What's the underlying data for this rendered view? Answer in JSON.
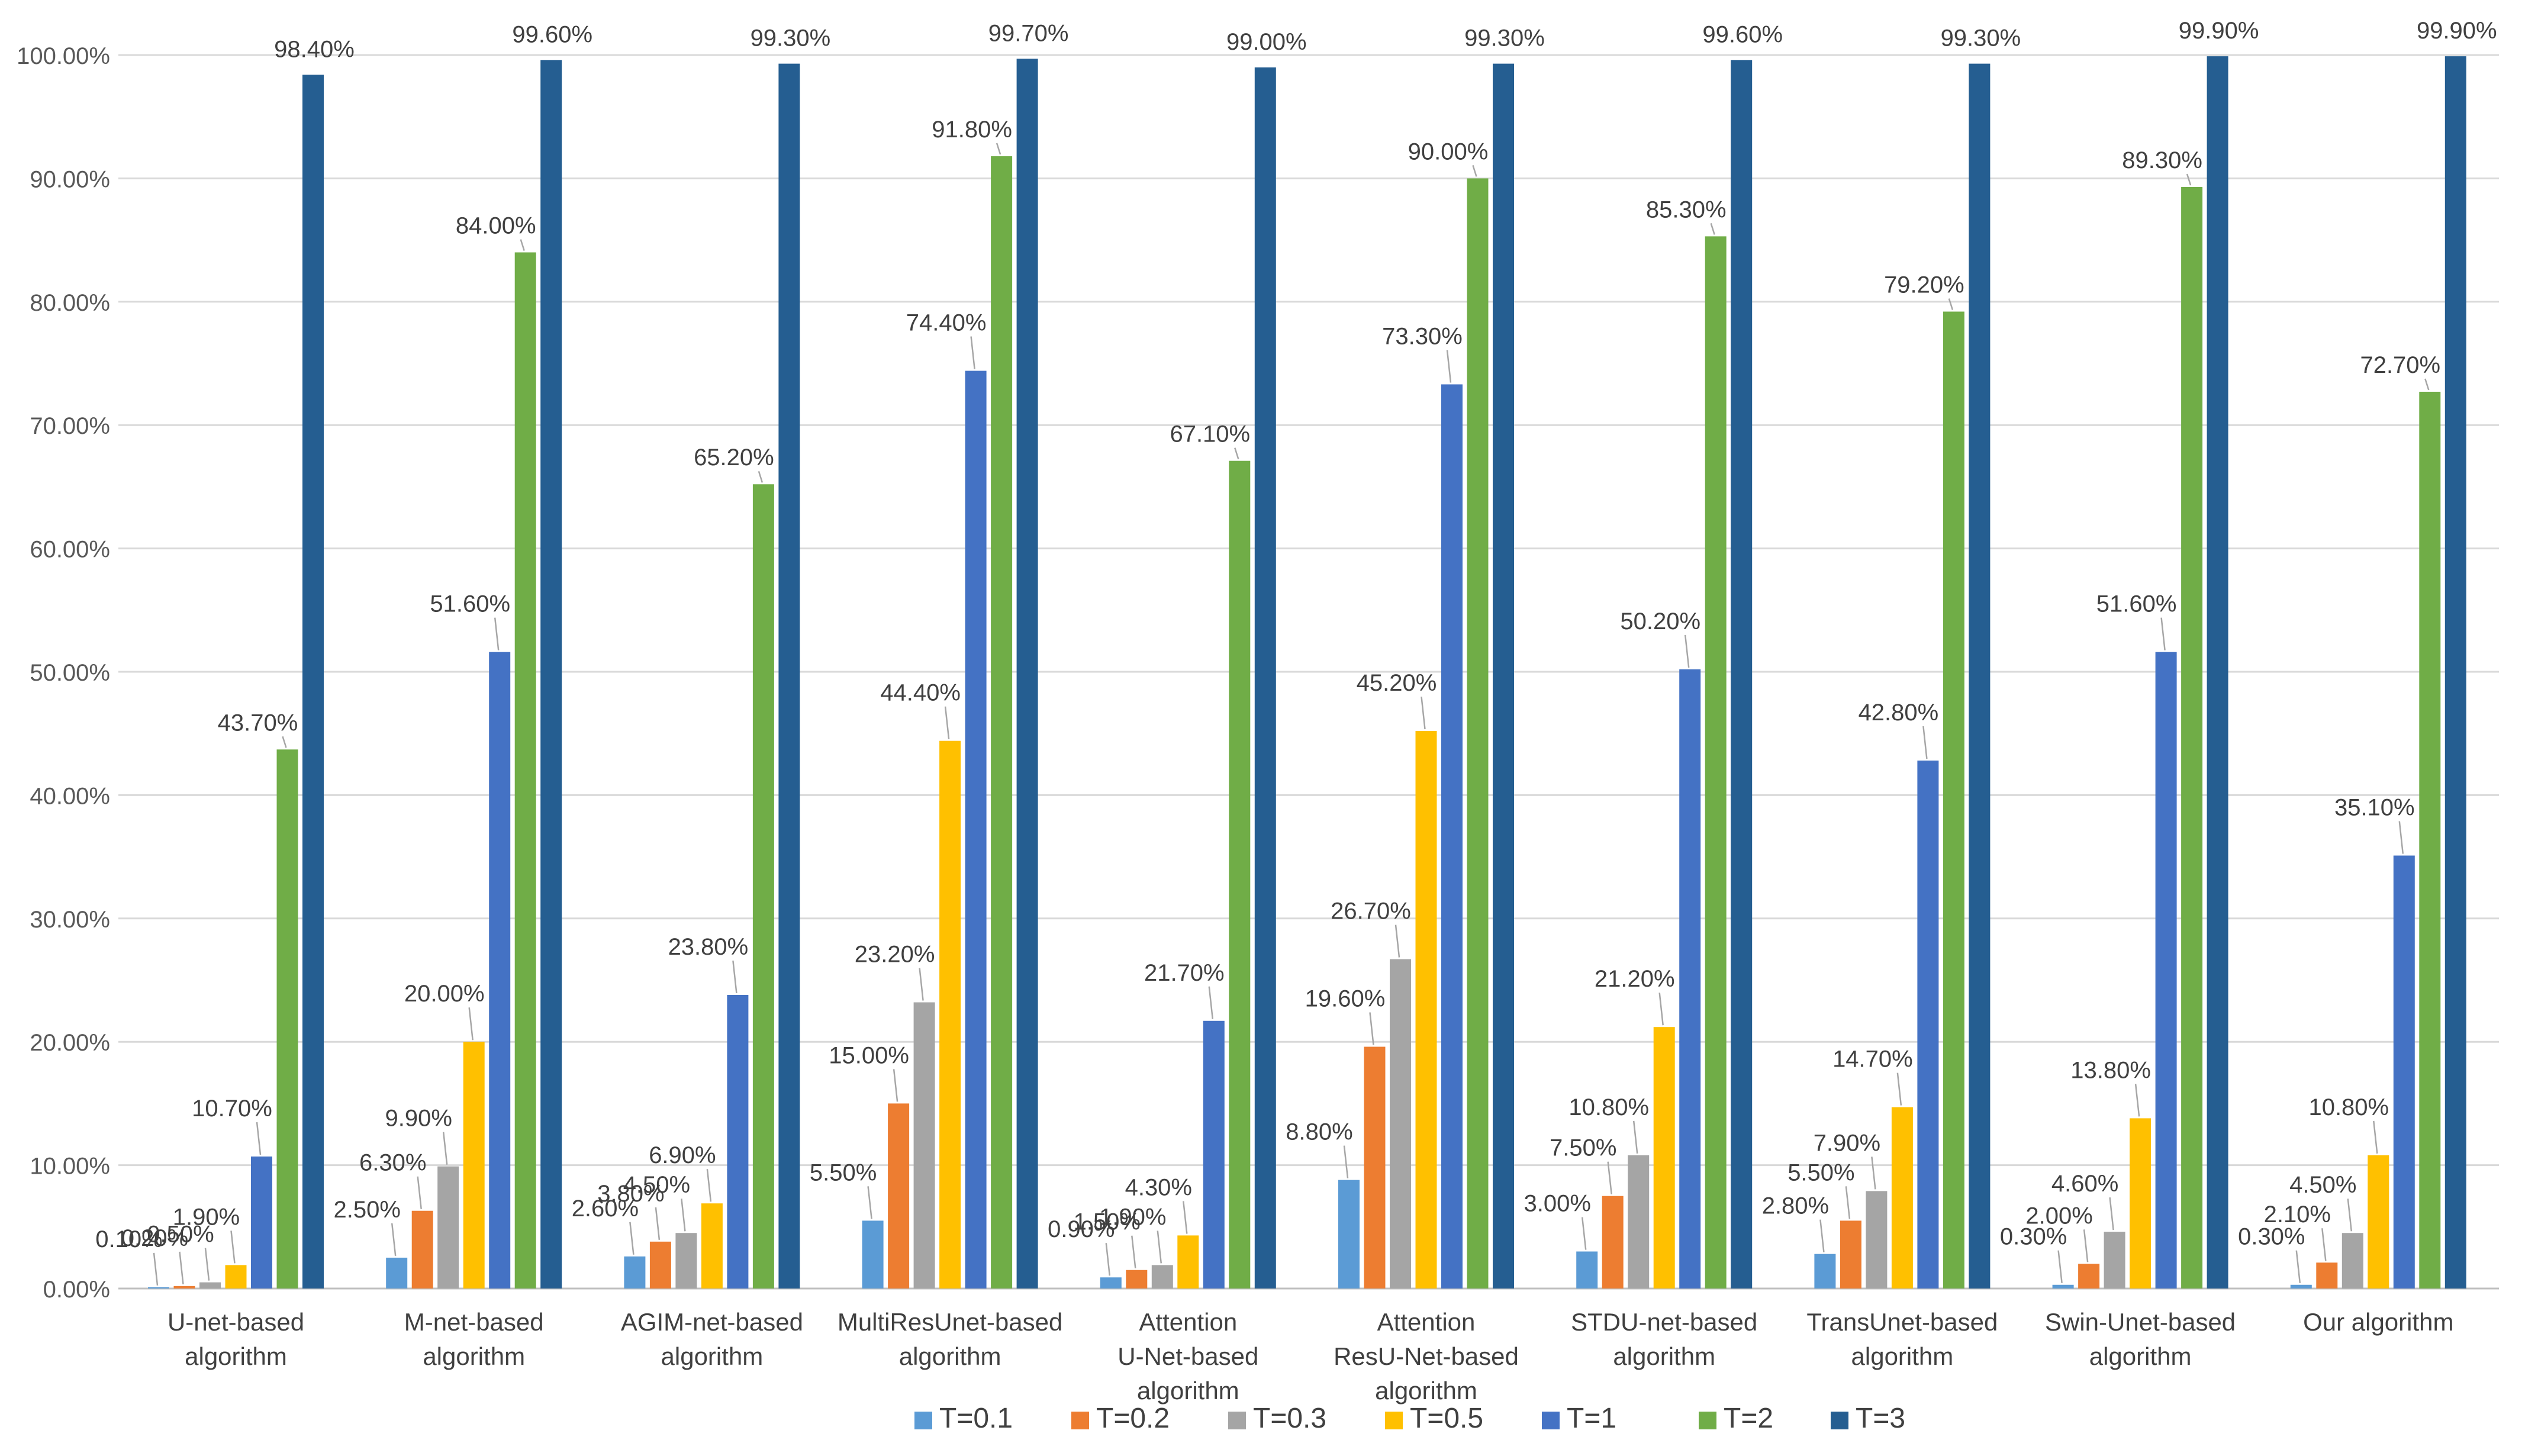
{
  "chart_data": {
    "type": "bar",
    "title": "",
    "xlabel": "",
    "ylabel": "",
    "ylim": [
      0,
      100
    ],
    "yticks": [
      "0.00%",
      "10.00%",
      "20.00%",
      "30.00%",
      "40.00%",
      "50.00%",
      "60.00%",
      "70.00%",
      "80.00%",
      "90.00%",
      "100.00%"
    ],
    "grid": true,
    "legend_position": "bottom",
    "categories": [
      [
        "U-net-based",
        "algorithm"
      ],
      [
        "M-net-based",
        "algorithm"
      ],
      [
        "AGIM-net-based",
        "algorithm"
      ],
      [
        "MultiResUnet-based",
        "algorithm"
      ],
      [
        "Attention",
        "U-Net-based",
        "algorithm"
      ],
      [
        "Attention",
        "ResU-Net-based",
        "algorithm"
      ],
      [
        "STDU-net-based",
        "algorithm"
      ],
      [
        "TransUnet-based",
        "algorithm"
      ],
      [
        "Swin-Unet-based",
        "algorithm"
      ],
      [
        "Our algorithm"
      ]
    ],
    "series": [
      {
        "name": "T=0.1",
        "color": "#5B9BD5",
        "values": [
          0.1,
          2.5,
          2.6,
          5.5,
          0.9,
          8.8,
          3.0,
          2.8,
          0.3,
          0.3
        ],
        "labels": [
          "0.10%",
          "2.50%",
          "2.60%",
          "5.50%",
          "0.90%",
          "8.80%",
          "3.00%",
          "2.80%",
          "0.30%",
          "0.30%"
        ]
      },
      {
        "name": "T=0.2",
        "color": "#ED7D31",
        "values": [
          0.2,
          6.3,
          3.8,
          15.0,
          1.5,
          19.6,
          7.5,
          5.5,
          2.0,
          2.1
        ],
        "labels": [
          "0.20%",
          "6.30%",
          "3.80%",
          "15.00%",
          "1.50%",
          "19.60%",
          "7.50%",
          "5.50%",
          "2.00%",
          "2.10%"
        ]
      },
      {
        "name": "T=0.3",
        "color": "#A5A5A5",
        "values": [
          0.5,
          9.9,
          4.5,
          23.2,
          1.9,
          26.7,
          10.8,
          7.9,
          4.6,
          4.5
        ],
        "labels": [
          "0.50%",
          "9.90%",
          "4.50%",
          "23.20%",
          "1.90%",
          "26.70%",
          "10.80%",
          "7.90%",
          "4.60%",
          "4.50%"
        ]
      },
      {
        "name": "T=0.5",
        "color": "#FFC000",
        "values": [
          1.9,
          20.0,
          6.9,
          44.4,
          4.3,
          45.2,
          21.2,
          14.7,
          13.8,
          10.8
        ],
        "labels": [
          "1.90%",
          "20.00%",
          "6.90%",
          "44.40%",
          "4.30%",
          "45.20%",
          "21.20%",
          "14.70%",
          "13.80%",
          "10.80%"
        ]
      },
      {
        "name": "T=1",
        "color": "#4472C4",
        "values": [
          10.7,
          51.6,
          23.8,
          74.4,
          21.7,
          73.3,
          50.2,
          42.8,
          51.6,
          35.1
        ],
        "labels": [
          "10.70%",
          "51.60%",
          "23.80%",
          "74.40%",
          "21.70%",
          "73.30%",
          "50.20%",
          "42.80%",
          "51.60%",
          "35.10%"
        ]
      },
      {
        "name": "T=2",
        "color": "#70AD47",
        "values": [
          43.7,
          84.0,
          65.2,
          91.8,
          67.1,
          90.0,
          85.3,
          79.2,
          89.3,
          72.7
        ],
        "labels": [
          "43.70%",
          "84.00%",
          "65.20%",
          "91.80%",
          "67.10%",
          "90.00%",
          "85.30%",
          "79.20%",
          "89.30%",
          "72.70%"
        ]
      },
      {
        "name": "T=3",
        "color": "#255E91",
        "values": [
          98.4,
          99.6,
          99.3,
          99.7,
          99.0,
          99.3,
          99.6,
          99.3,
          99.9,
          99.9
        ],
        "labels": [
          "98.40%",
          "99.60%",
          "99.30%",
          "99.70%",
          "99.00%",
          "99.30%",
          "99.60%",
          "99.30%",
          "99.90%",
          "99.90%"
        ]
      }
    ],
    "colors": {
      "gridline": "#D9D9D9",
      "axis_text": "#595959",
      "leader_line": "#A6A6A6"
    }
  }
}
